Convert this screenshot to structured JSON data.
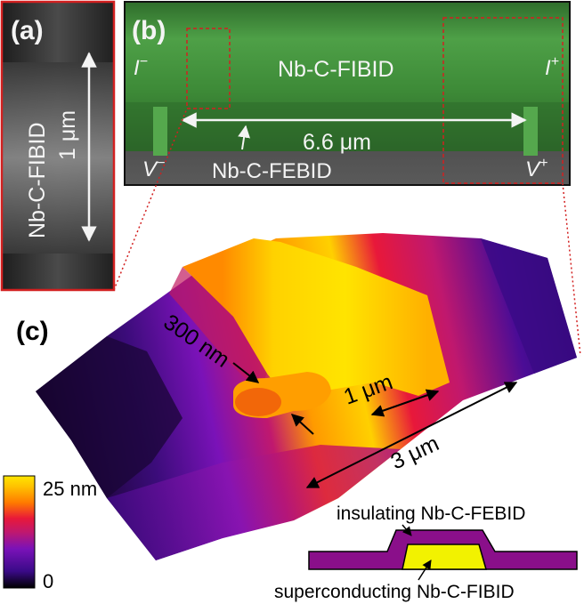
{
  "panel_a": {
    "tag": "(a)",
    "material": "Nb-C-FIBID",
    "length": "1 μm"
  },
  "panel_b": {
    "tag": "(b)",
    "center_material": "Nb-C-FIBID",
    "lower_material": "Nb-C-FEBID",
    "distance": "6.6 μm",
    "i_minus_base": "I",
    "i_minus_sup": "−",
    "i_plus_base": "I",
    "i_plus_sup": "+",
    "v_minus_base": "V",
    "v_minus_sup": "−",
    "v_plus_base": "V",
    "v_plus_sup": "+"
  },
  "panel_c": {
    "tag": "(c)",
    "width_label": "300 nm",
    "height_label": "1 μm",
    "length_label": "3 μm",
    "colorbar_max": "25 nm",
    "colorbar_min": "0",
    "colormap": [
      "#000000",
      "#3a0a88",
      "#7a12b8",
      "#c0186e",
      "#e8183a",
      "#ff7a00",
      "#ffc000",
      "#ffe600"
    ]
  },
  "cross_section": {
    "top_label": "insulating Nb-C-FEBID",
    "bottom_label": "superconducting Nb-C-FIBID",
    "outer_color": "#8a0f8a",
    "inner_color": "#f2f200"
  },
  "colors": {
    "sem_green": "#3f8f3a",
    "frame_red": "#d22020",
    "text_light": "#f4f4f4"
  }
}
